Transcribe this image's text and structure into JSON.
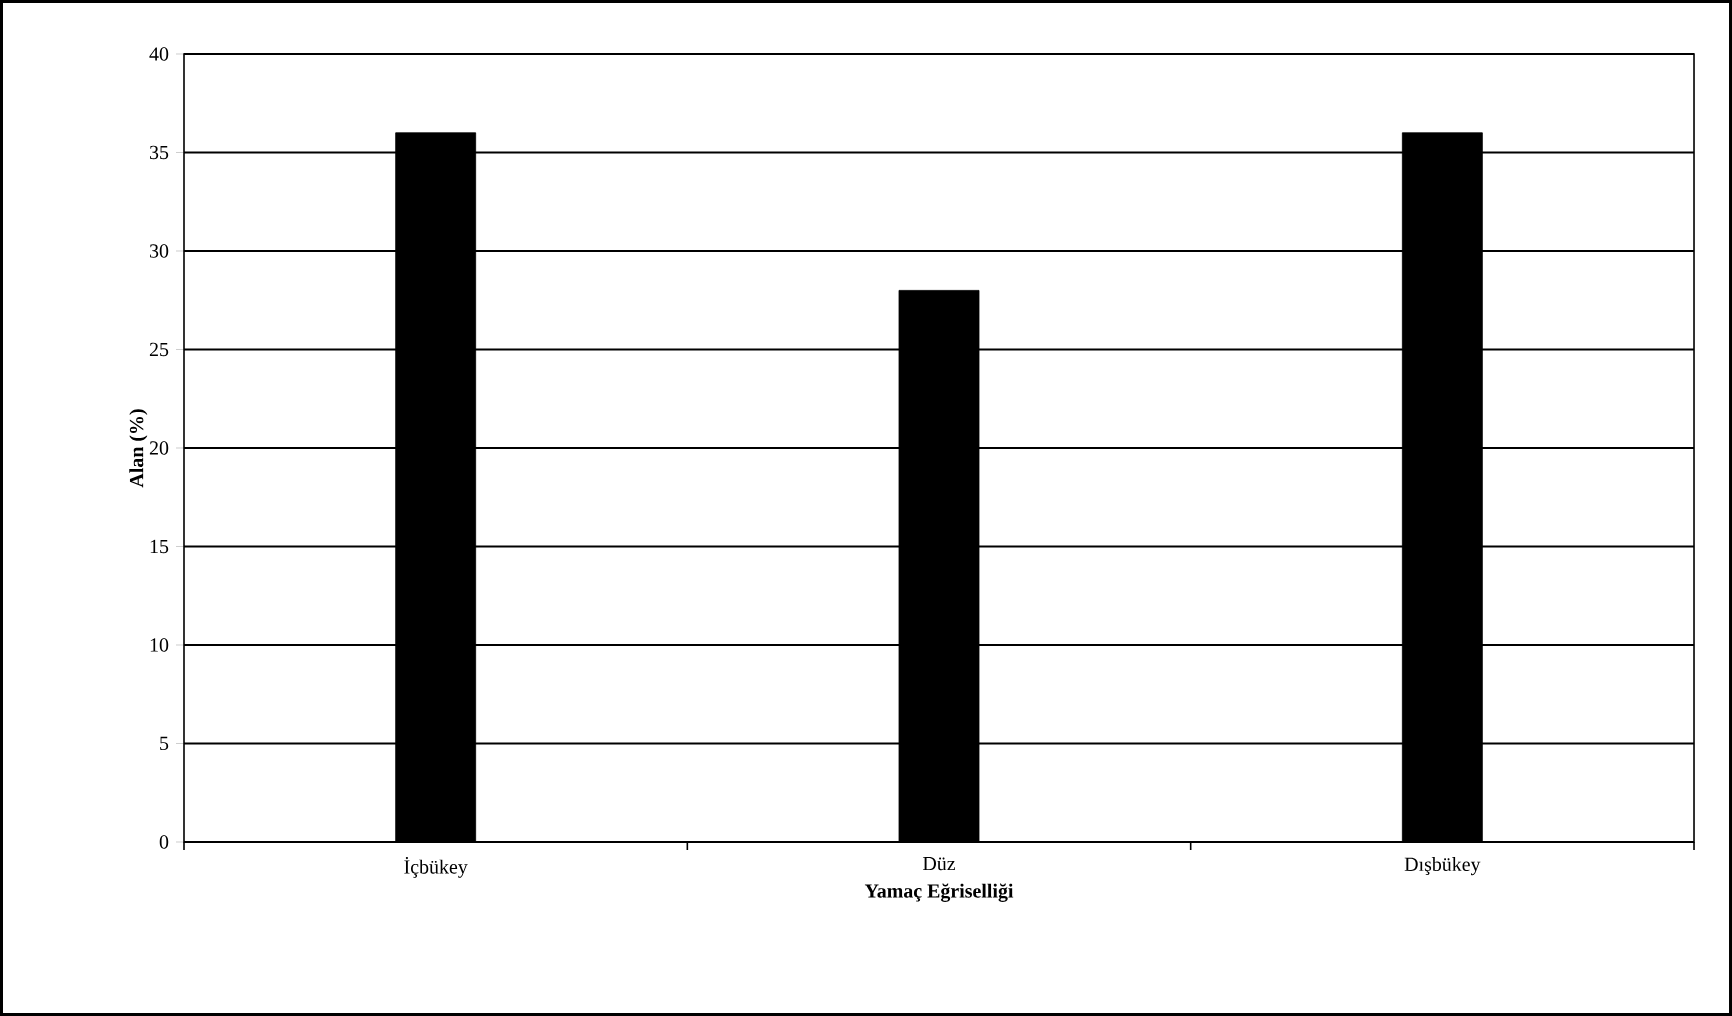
{
  "chart_data": {
    "type": "bar",
    "xlabel": "Yamaç Eğriselliği",
    "ylabel": "Alan (%)",
    "categories": [
      "İçbükey",
      "Düz",
      "Dışbükey"
    ],
    "values": [
      36,
      28,
      36
    ],
    "color": "#000000",
    "ylim": [
      0,
      40
    ],
    "yticks": [
      0,
      5,
      10,
      15,
      20,
      25,
      30,
      35,
      40
    ],
    "grid": "y"
  }
}
